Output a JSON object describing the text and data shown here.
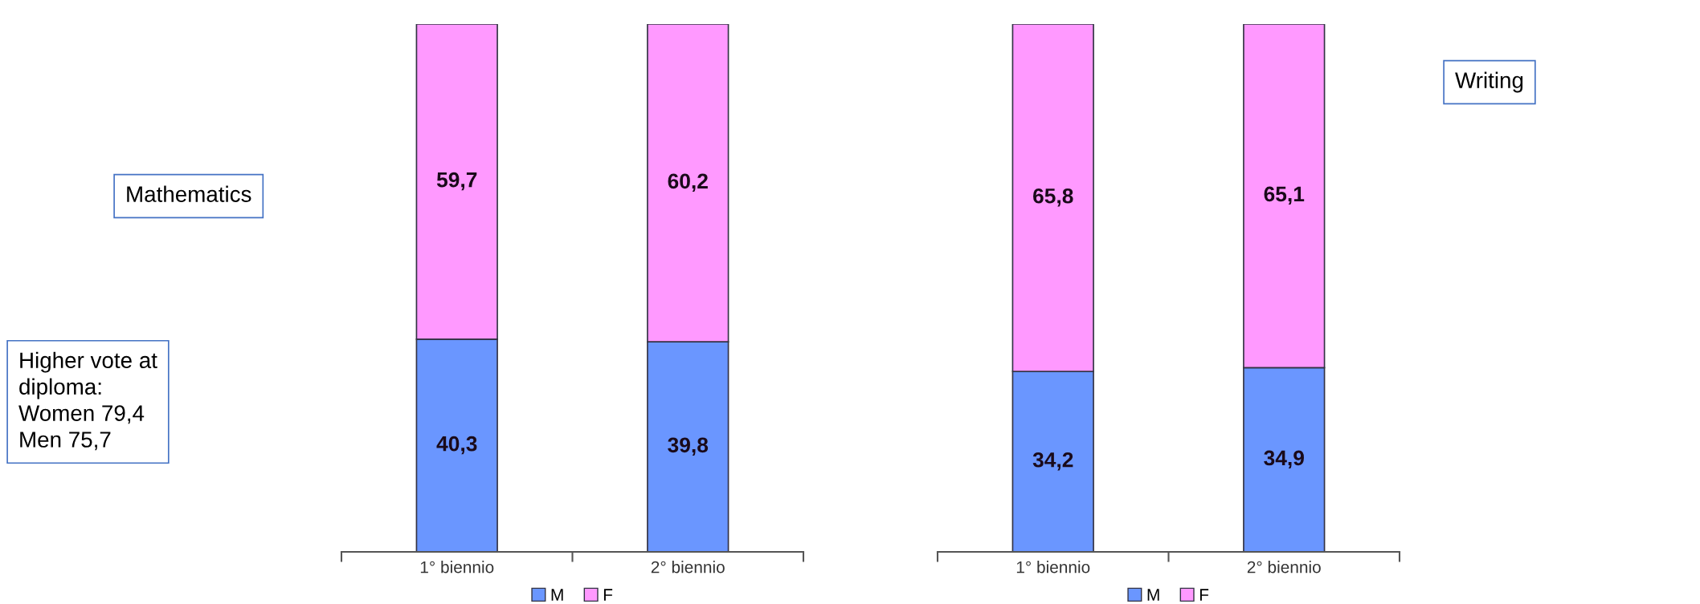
{
  "chart_data": [
    {
      "type": "bar",
      "title": "Mathematics",
      "stacked": true,
      "categories": [
        "1° biennio",
        "2° biennio"
      ],
      "legend": "bottom",
      "annotations": [
        "Higher vote at\ndiploma:\nWomen 79,4\nMen 75,7"
      ],
      "series": [
        {
          "name": "M",
          "color": "#6a96ff",
          "values": [
            40.3,
            39.8
          ],
          "value_labels": [
            "40,3",
            "39,8"
          ]
        },
        {
          "name": "F",
          "color": "#ff99ff",
          "values": [
            59.7,
            60.2
          ],
          "value_labels": [
            "59,7",
            "60,2"
          ]
        }
      ]
    },
    {
      "type": "bar",
      "stacked": true,
      "categories": [
        "1° biennio",
        "2° biennio"
      ],
      "legend": "bottom",
      "annotations": [
        "Writing"
      ],
      "series": [
        {
          "name": "M",
          "color": "#6a96ff",
          "values": [
            34.2,
            34.9
          ],
          "value_labels": [
            "34,2",
            "34,9"
          ]
        },
        {
          "name": "F",
          "color": "#ff99ff",
          "values": [
            65.8,
            65.1
          ],
          "value_labels": [
            "65,8",
            "65,1"
          ]
        }
      ]
    }
  ]
}
